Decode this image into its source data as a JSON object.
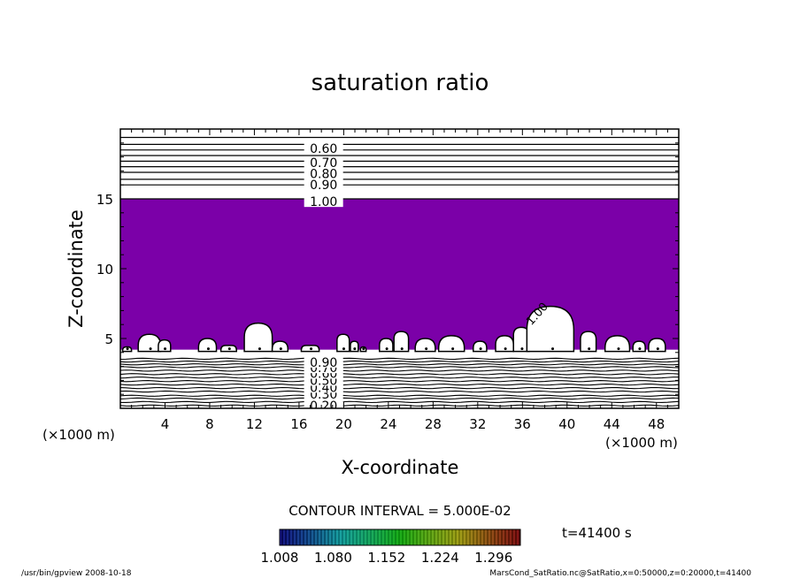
{
  "chart_data": {
    "type": "contour",
    "title": "saturation ratio",
    "xlabel": "X-coordinate",
    "ylabel": "Z-coordinate",
    "x_unit_left": "(×1000 m)",
    "x_unit_right": "(×1000 m)",
    "xlim": [
      0,
      50
    ],
    "ylim": [
      0,
      20
    ],
    "x_ticks": [
      4,
      8,
      12,
      16,
      20,
      24,
      28,
      32,
      36,
      40,
      44,
      48
    ],
    "y_ticks": [
      5,
      10,
      15
    ],
    "fill_color": "#7b00a8",
    "fill_region": {
      "z_bottom": 4.2,
      "z_top": 15.0,
      "meaning": "saturation ratio > 1.008"
    },
    "upper_contour_z": [
      15.0,
      16.0,
      16.4,
      16.9,
      17.3,
      17.7,
      18.1,
      18.5,
      18.9,
      19.4
    ],
    "upper_labels": [
      {
        "text": "0.60",
        "z": 18.6
      },
      {
        "text": "0.70",
        "z": 17.6
      },
      {
        "text": "0.80",
        "z": 16.8
      },
      {
        "text": "0.90",
        "z": 16.0
      },
      {
        "text": "1.00",
        "z": 14.8
      }
    ],
    "lower_contour_z": [
      0.2,
      0.45,
      0.7,
      0.9,
      1.2,
      1.45,
      1.7,
      1.95,
      2.2,
      2.45,
      2.7,
      2.95,
      3.15,
      3.35,
      3.55
    ],
    "lower_labels": [
      {
        "text": "0.20",
        "z": 0.2
      },
      {
        "text": "0.30",
        "z": 1.0
      },
      {
        "text": "0.40",
        "z": 1.5
      },
      {
        "text": "0.50",
        "z": 2.0
      },
      {
        "text": "0.60",
        "z": 2.5
      },
      {
        "text": "0.70",
        "z": 2.9
      },
      {
        "text": "0.90",
        "z": 3.3
      }
    ],
    "cloud_label": {
      "text": "1.00",
      "x": 36.8,
      "z": 5.9
    },
    "clouds": [
      {
        "x0": 0.2,
        "x1": 1.0,
        "top": 4.4
      },
      {
        "x0": 1.6,
        "x1": 3.6,
        "top": 5.3
      },
      {
        "x0": 3.4,
        "x1": 4.5,
        "top": 4.9
      },
      {
        "x0": 7.0,
        "x1": 8.6,
        "top": 5.0
      },
      {
        "x0": 9.0,
        "x1": 10.4,
        "top": 4.5
      },
      {
        "x0": 11.1,
        "x1": 13.6,
        "top": 6.1
      },
      {
        "x0": 13.6,
        "x1": 15.0,
        "top": 4.8
      },
      {
        "x0": 16.2,
        "x1": 17.8,
        "top": 4.5
      },
      {
        "x0": 19.4,
        "x1": 20.5,
        "top": 5.3
      },
      {
        "x0": 20.6,
        "x1": 21.3,
        "top": 4.8
      },
      {
        "x0": 21.5,
        "x1": 22.0,
        "top": 4.4
      },
      {
        "x0": 23.2,
        "x1": 24.4,
        "top": 5.0
      },
      {
        "x0": 24.5,
        "x1": 25.8,
        "top": 5.5
      },
      {
        "x0": 26.4,
        "x1": 28.2,
        "top": 5.0
      },
      {
        "x0": 28.5,
        "x1": 30.8,
        "top": 5.2
      },
      {
        "x0": 31.6,
        "x1": 32.8,
        "top": 4.8
      },
      {
        "x0": 33.6,
        "x1": 35.2,
        "top": 5.2
      },
      {
        "x0": 35.2,
        "x1": 36.6,
        "top": 5.8
      },
      {
        "x0": 36.4,
        "x1": 40.6,
        "top": 7.3
      },
      {
        "x0": 41.2,
        "x1": 42.6,
        "top": 5.5
      },
      {
        "x0": 43.4,
        "x1": 45.6,
        "top": 5.2
      },
      {
        "x0": 45.9,
        "x1": 47.0,
        "top": 4.8
      },
      {
        "x0": 47.3,
        "x1": 48.8,
        "top": 5.0
      }
    ],
    "contour_interval": "CONTOUR INTERVAL = 5.000E-02",
    "time_label": "t=41400 s",
    "colorbar": {
      "min": 1.008,
      "max": 1.332,
      "labels": [
        "1.008",
        "1.080",
        "1.152",
        "1.224",
        "1.296"
      ]
    },
    "footer_left": "/usr/bin/gpview   2008-10-18",
    "footer_right": "MarsCond_SatRatio.nc@SatRatio,x=0:50000,z=0:20000,t=41400"
  }
}
